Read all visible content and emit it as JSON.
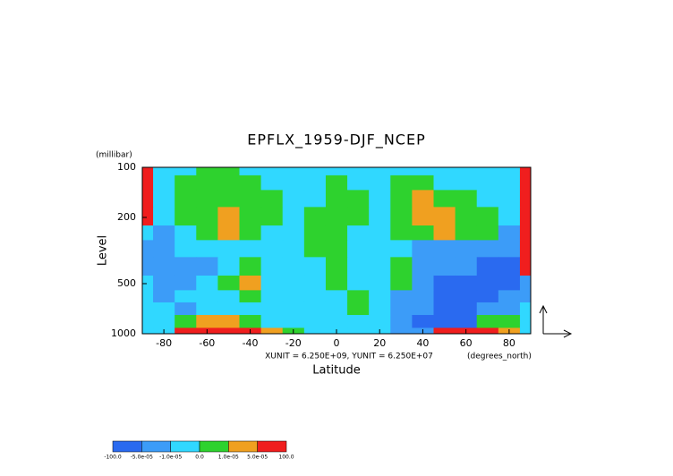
{
  "chart_data": {
    "type": "contour",
    "title": "EPFLX_1959-DJF_NCEP",
    "y_unit": "(millibar)",
    "ylabel": "Level",
    "xlabel": "Latitude",
    "x_unit": "(degrees_north)",
    "annotation": "XUNIT = 6.250E+09, YUNIT = 6.250E+07",
    "xlim": [
      -90,
      90
    ],
    "xticks": [
      -80,
      -60,
      -40,
      -20,
      0,
      20,
      40,
      60,
      80
    ],
    "ylim": [
      1000,
      100
    ],
    "yticks": [
      100,
      200,
      500,
      1000
    ],
    "ylog": true,
    "x": [
      -90,
      -80,
      -70,
      -60,
      -50,
      -40,
      -30,
      -20,
      -10,
      0,
      10,
      20,
      30,
      40,
      50,
      60,
      70,
      80,
      90
    ],
    "y": [
      100,
      125,
      150,
      200,
      250,
      300,
      400,
      500,
      600,
      700,
      850,
      1000
    ],
    "z": [
      [
        8e-05,
        -5e-06,
        -5e-06,
        5e-06,
        5e-06,
        -5e-06,
        -5e-06,
        -5e-06,
        -5e-06,
        -5e-06,
        -5e-06,
        -5e-06,
        -5e-06,
        -5e-06,
        -5e-06,
        -5e-06,
        -5e-06,
        -5e-06,
        8e-05
      ],
      [
        8e-05,
        -5e-06,
        5e-06,
        5e-06,
        5e-06,
        5e-06,
        -5e-06,
        -5e-06,
        -5e-06,
        5e-06,
        -5e-06,
        -5e-06,
        5e-06,
        5e-06,
        -5e-06,
        -5e-06,
        -5e-06,
        -5e-06,
        8e-05
      ],
      [
        8e-05,
        -5e-06,
        5e-06,
        5e-06,
        5e-06,
        5e-06,
        5e-06,
        -5e-06,
        -5e-06,
        5e-06,
        5e-06,
        -5e-06,
        5e-06,
        3e-05,
        5e-06,
        5e-06,
        -5e-06,
        -5e-06,
        8e-05
      ],
      [
        8e-05,
        -5e-06,
        5e-06,
        5e-06,
        3e-05,
        5e-06,
        5e-06,
        -5e-06,
        5e-06,
        5e-06,
        5e-06,
        -5e-06,
        5e-06,
        3e-05,
        3e-05,
        5e-06,
        5e-06,
        -5e-06,
        8e-05
      ],
      [
        -5e-06,
        -3e-05,
        -5e-06,
        5e-06,
        3e-05,
        5e-06,
        -5e-06,
        -5e-06,
        5e-06,
        5e-06,
        -5e-06,
        -5e-06,
        5e-06,
        5e-06,
        3e-05,
        5e-06,
        5e-06,
        -3e-05,
        8e-05
      ],
      [
        -3e-05,
        -3e-05,
        -5e-06,
        -5e-06,
        -5e-06,
        -5e-06,
        -5e-06,
        -5e-06,
        5e-06,
        5e-06,
        -5e-06,
        -5e-06,
        -5e-06,
        -3e-05,
        -3e-05,
        -3e-05,
        -3e-05,
        -3e-05,
        8e-05
      ],
      [
        -3e-05,
        -3e-05,
        -3e-05,
        -3e-05,
        -5e-06,
        5e-06,
        -5e-06,
        -5e-06,
        -5e-06,
        5e-06,
        -5e-06,
        -5e-06,
        5e-06,
        -3e-05,
        -3e-05,
        -3e-05,
        -8e-05,
        -8e-05,
        8e-05
      ],
      [
        -5e-06,
        -3e-05,
        -3e-05,
        -5e-06,
        5e-06,
        3e-05,
        -5e-06,
        -5e-06,
        -5e-06,
        5e-06,
        -5e-06,
        -5e-06,
        5e-06,
        -3e-05,
        -8e-05,
        -8e-05,
        -8e-05,
        -8e-05,
        -3e-05
      ],
      [
        -5e-06,
        -3e-05,
        -5e-06,
        -5e-06,
        -5e-06,
        5e-06,
        -5e-06,
        -5e-06,
        -5e-06,
        -5e-06,
        5e-06,
        -5e-06,
        -3e-05,
        -3e-05,
        -8e-05,
        -8e-05,
        -8e-05,
        -3e-05,
        -3e-05
      ],
      [
        -5e-06,
        -5e-06,
        -3e-05,
        -5e-06,
        -5e-06,
        -5e-06,
        -5e-06,
        -5e-06,
        -5e-06,
        -5e-06,
        5e-06,
        -5e-06,
        -3e-05,
        -3e-05,
        -8e-05,
        -8e-05,
        -3e-05,
        -3e-05,
        -5e-06
      ],
      [
        -5e-06,
        -5e-06,
        5e-06,
        3e-05,
        3e-05,
        5e-06,
        -5e-06,
        -5e-06,
        -5e-06,
        -5e-06,
        -5e-06,
        -5e-06,
        -3e-05,
        -8e-05,
        -8e-05,
        -8e-05,
        5e-06,
        5e-06,
        -5e-06
      ],
      [
        -5e-06,
        -5e-06,
        8e-05,
        8e-05,
        8e-05,
        8e-05,
        3e-05,
        5e-06,
        -5e-06,
        -5e-06,
        -5e-06,
        -5e-06,
        -3e-05,
        -3e-05,
        8e-05,
        8e-05,
        8e-05,
        3e-05,
        -5e-06
      ]
    ],
    "levels": [
      {
        "value": -100,
        "label": "-100.0"
      },
      {
        "value": -5e-05,
        "label": "-5.0e-05"
      },
      {
        "value": -1e-05,
        "label": "-1.0e-05"
      },
      {
        "value": 0,
        "label": "0.0"
      },
      {
        "value": 1e-05,
        "label": "1.0e-05"
      },
      {
        "value": 5e-05,
        "label": "5.0e-05"
      },
      {
        "value": 100,
        "label": "100.0"
      }
    ],
    "colors": [
      "#2a6af0",
      "#3c9cf8",
      "#30d8ff",
      "#2ed22e",
      "#f0a020",
      "#f01e1e"
    ]
  }
}
